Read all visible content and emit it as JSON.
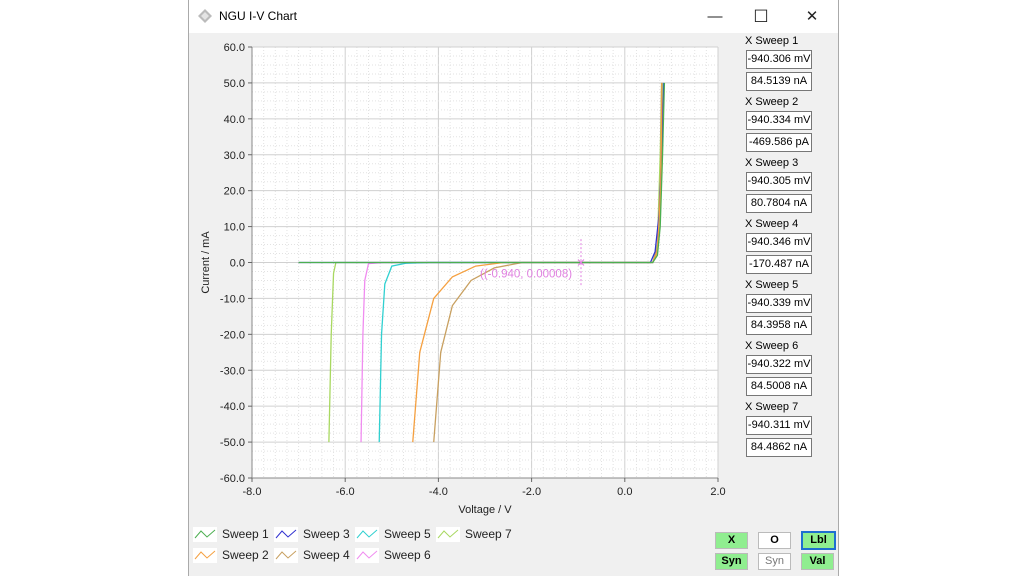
{
  "window": {
    "title": "NGU I-V Chart",
    "minimize": "—",
    "maximize": "☐",
    "close": "✕"
  },
  "chart_data": {
    "type": "line",
    "xlabel": "Voltage / V",
    "ylabel": "Current / mA",
    "xlim": [
      -8,
      2
    ],
    "ylim": [
      -60,
      60
    ],
    "xticks": [
      "-8.0",
      "-6.0",
      "-4.0",
      "-2.0",
      "0.0",
      "2.0"
    ],
    "yticks": [
      "60.0",
      "50.0",
      "40.0",
      "30.0",
      "20.0",
      "10.0",
      "0.0",
      "-10.0",
      "-20.0",
      "-30.0",
      "-40.0",
      "-50.0",
      "-60.0"
    ],
    "grid": true,
    "series": [
      {
        "name": "Sweep 1",
        "color": "#4caf50",
        "points": [
          [
            -7,
            0
          ],
          [
            0.6,
            0
          ],
          [
            0.7,
            2
          ],
          [
            0.76,
            10
          ],
          [
            0.81,
            30
          ],
          [
            0.85,
            50
          ]
        ]
      },
      {
        "name": "Sweep 2",
        "color": "#f5a040",
        "points": [
          [
            -4.55,
            -50
          ],
          [
            -4.4,
            -25
          ],
          [
            -4.1,
            -10
          ],
          [
            -3.7,
            -4
          ],
          [
            -3.2,
            -1
          ],
          [
            -2.6,
            0
          ],
          [
            0.6,
            0
          ],
          [
            0.7,
            3
          ],
          [
            0.77,
            20
          ],
          [
            0.8,
            50
          ]
        ]
      },
      {
        "name": "Sweep 3",
        "color": "#3030d0",
        "points": [
          [
            -7,
            0
          ],
          [
            -6.2,
            0
          ],
          [
            0.55,
            0
          ],
          [
            0.65,
            3
          ],
          [
            0.75,
            15
          ],
          [
            0.8,
            35
          ],
          [
            0.84,
            50
          ]
        ]
      },
      {
        "name": "Sweep 4",
        "color": "#c8a060",
        "points": [
          [
            -4.1,
            -50
          ],
          [
            -3.95,
            -25
          ],
          [
            -3.7,
            -12
          ],
          [
            -3.3,
            -5
          ],
          [
            -2.8,
            -1.5
          ],
          [
            -2.2,
            0
          ],
          [
            0.6,
            0
          ],
          [
            0.7,
            4
          ],
          [
            0.77,
            25
          ],
          [
            0.79,
            50
          ]
        ]
      },
      {
        "name": "Sweep 5",
        "color": "#30d0d0",
        "points": [
          [
            -5.27,
            -50
          ],
          [
            -5.22,
            -20
          ],
          [
            -5.15,
            -6
          ],
          [
            -5.0,
            -1
          ],
          [
            -4.7,
            -0.2
          ],
          [
            -4.2,
            0
          ],
          [
            0.6,
            0
          ],
          [
            0.7,
            3
          ],
          [
            0.78,
            20
          ],
          [
            0.82,
            50
          ]
        ]
      },
      {
        "name": "Sweep 6",
        "color": "#f08cf0",
        "points": [
          [
            -5.66,
            -50
          ],
          [
            -5.62,
            -20
          ],
          [
            -5.58,
            -5
          ],
          [
            -5.5,
            -0.3
          ],
          [
            -5.2,
            0
          ],
          [
            0.6,
            0
          ],
          [
            0.7,
            3
          ],
          [
            0.78,
            25
          ],
          [
            0.81,
            50
          ]
        ]
      },
      {
        "name": "Sweep 7",
        "color": "#a8d860",
        "points": [
          [
            -6.35,
            -50
          ],
          [
            -6.3,
            -20
          ],
          [
            -6.25,
            -3
          ],
          [
            -6.2,
            0
          ],
          [
            0.6,
            0
          ],
          [
            0.7,
            5
          ],
          [
            0.76,
            30
          ],
          [
            0.79,
            50
          ]
        ]
      }
    ],
    "cursor": {
      "x": -0.94,
      "label": "((-0.940, 0.00008)",
      "color": "#e080e0"
    }
  },
  "readouts": [
    {
      "label": "X Sweep 1",
      "voltage": "-940.306 mV",
      "current": "84.5139 nA"
    },
    {
      "label": "X Sweep 2",
      "voltage": "-940.334 mV",
      "current": "-469.586 pA"
    },
    {
      "label": "X Sweep 3",
      "voltage": "-940.305 mV",
      "current": "80.7804 nA"
    },
    {
      "label": "X Sweep 4",
      "voltage": "-940.346 mV",
      "current": "-170.487 nA"
    },
    {
      "label": "X Sweep 5",
      "voltage": "-940.339 mV",
      "current": "84.3958 nA"
    },
    {
      "label": "X Sweep 6",
      "voltage": "-940.322 mV",
      "current": "84.5008 nA"
    },
    {
      "label": "X Sweep 7",
      "voltage": "-940.311 mV",
      "current": "84.4862 nA"
    }
  ],
  "buttons": {
    "x": "X",
    "o": "O",
    "lbl": "Lbl",
    "syn1": "Syn",
    "syn2": "Syn",
    "val": "Val",
    "active_color": "#90ee90"
  }
}
